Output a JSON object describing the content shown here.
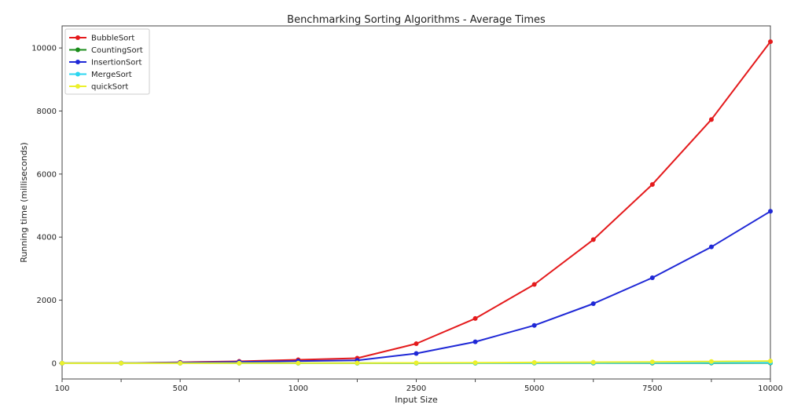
{
  "chart_data": {
    "type": "line",
    "title": "Benchmarking Sorting Algorithms - Average Times",
    "xlabel": "Input Size",
    "ylabel": "Running time (milliseconds)",
    "x_tick_labels": [
      "100",
      "",
      "500",
      "",
      "1000",
      "",
      "2500",
      "",
      "5000",
      "",
      "7500",
      "",
      "10000"
    ],
    "ylim": [
      -500,
      10700
    ],
    "yticks": [
      0,
      2000,
      4000,
      6000,
      8000,
      10000
    ],
    "grid": false,
    "legend_position": "top-left",
    "series": [
      {
        "name": "BubbleSort",
        "color": "#e41a1c",
        "values": [
          0,
          5,
          30,
          60,
          110,
          160,
          620,
          1420,
          2500,
          3920,
          5670,
          7730,
          10200
        ]
      },
      {
        "name": "CountingSort",
        "color": "#1a8c1a",
        "values": [
          0,
          0,
          0,
          0,
          0,
          0,
          0,
          2,
          3,
          4,
          5,
          6,
          8
        ]
      },
      {
        "name": "InsertionSort",
        "color": "#1f28d6",
        "values": [
          0,
          3,
          20,
          40,
          70,
          90,
          310,
          680,
          1200,
          1890,
          2710,
          3690,
          4820
        ]
      },
      {
        "name": "MergeSort",
        "color": "#2bd6f0",
        "values": [
          0,
          0,
          0,
          0,
          1,
          2,
          3,
          5,
          7,
          10,
          12,
          15,
          18
        ]
      },
      {
        "name": "quickSort",
        "color": "#ecf02b",
        "values": [
          0,
          0,
          1,
          2,
          4,
          6,
          10,
          16,
          24,
          32,
          42,
          55,
          70
        ]
      }
    ]
  }
}
